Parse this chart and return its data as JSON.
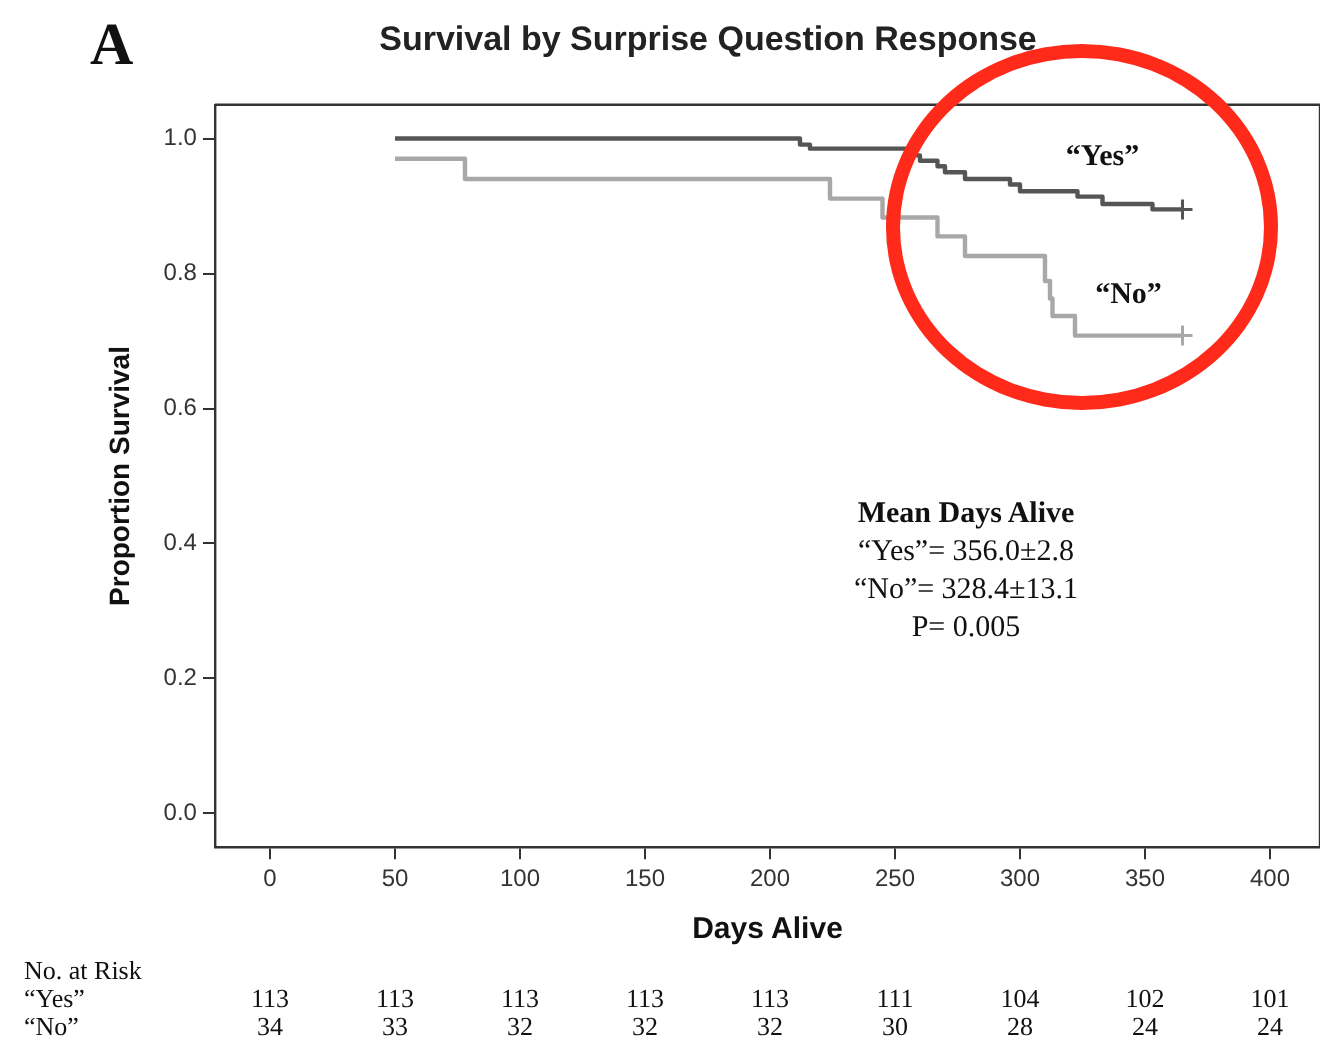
{
  "chart_data": {
    "type": "step",
    "title": "Survival by Surprise Question Response",
    "xlabel": "Days Alive",
    "ylabel": "Proportion Survival",
    "xlim": [
      -22,
      420
    ],
    "xticks": [
      0,
      50,
      100,
      150,
      200,
      250,
      300,
      350,
      400
    ],
    "ylim": [
      -0.05,
      1.05
    ],
    "yticks": [
      {
        "value": 0,
        "label": "0.0"
      },
      {
        "value": 0.2,
        "label": "0.2"
      },
      {
        "value": 0.4,
        "label": "0.4"
      },
      {
        "value": 0.6,
        "label": "0.6"
      },
      {
        "value": 0.8,
        "label": "0.8"
      },
      {
        "value": 1,
        "label": "1.0"
      }
    ],
    "series": [
      {
        "name": "“Yes”",
        "color": "#555555",
        "x": [
          50,
          212,
          216,
          256,
          260,
          267,
          270,
          278,
          296,
          300,
          323,
          333,
          353,
          365
        ],
        "values": [
          1.0,
          0.991,
          0.985,
          0.975,
          0.967,
          0.959,
          0.95,
          0.94,
          0.932,
          0.922,
          0.914,
          0.903,
          0.895,
          0.895
        ]
      },
      {
        "name": "“No”",
        "color": "#a8a8a8",
        "x": [
          50,
          78,
          224,
          245,
          267,
          278,
          310,
          312,
          313,
          322,
          365
        ],
        "values": [
          0.97,
          0.94,
          0.911,
          0.883,
          0.855,
          0.826,
          0.789,
          0.763,
          0.737,
          0.708,
          0.708
        ]
      }
    ],
    "annotations": [
      "A",
      "Mean Days Alive",
      "“Yes”= 356.0±2.8",
      "“No”= 328.4±13.1",
      "P= 0.005",
      "No. at Risk",
      "“Yes”",
      "“No”",
      "113",
      "113",
      "113",
      "113",
      "113",
      "111",
      "104",
      "102",
      "101",
      "34",
      "33",
      "32",
      "32",
      "32",
      "30",
      "28",
      "24",
      "24"
    ]
  }
}
